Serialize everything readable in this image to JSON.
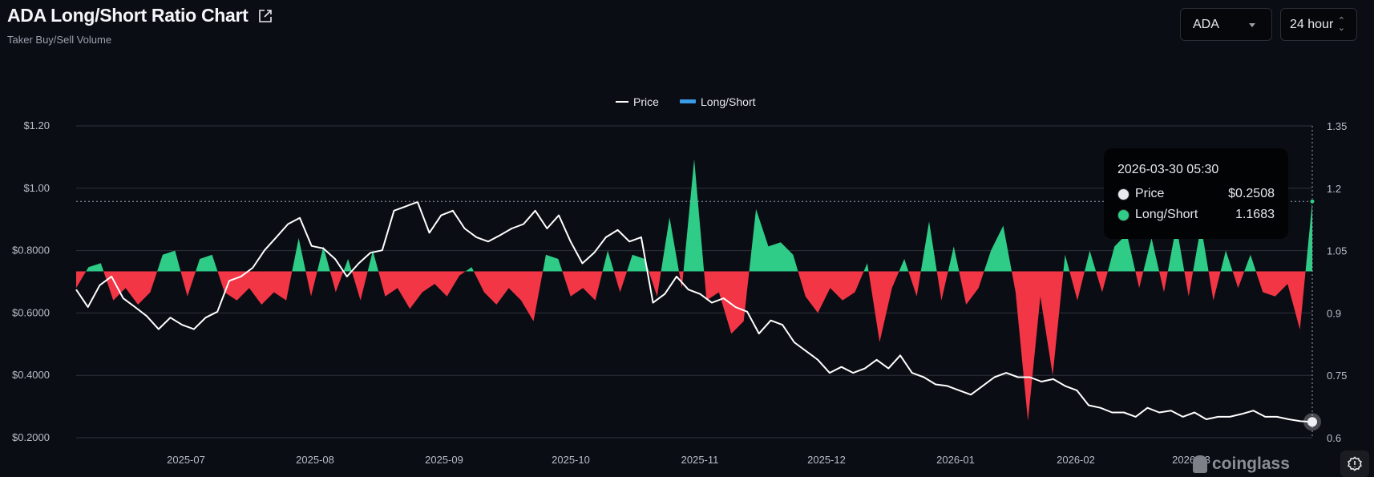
{
  "header": {
    "title": "ADA Long/Short Ratio Chart",
    "subtitle": "Taker Buy/Sell Volume",
    "coin_select": "ADA",
    "interval_select": "24 hour"
  },
  "tooltip": {
    "date": "2026-03-30 05:30",
    "price_label": "Price",
    "price_value": "$0.2508",
    "ls_label": "Long/Short",
    "ls_value": "1.1683"
  },
  "watermark": "coinglass",
  "colors": {
    "price": "#ffffff",
    "long": "#2ecc87",
    "short": "#f23645",
    "legend_ls": "#3a9be8",
    "bg": "#0b0d14"
  },
  "chart_data": {
    "type": "line+area",
    "title": "ADA Long/Short Ratio Chart",
    "legend": {
      "position": "top-center",
      "entries": [
        "Price",
        "Long/Short"
      ]
    },
    "x_ticks": [
      "2025-07",
      "2025-08",
      "2025-09",
      "2025-10",
      "2025-11",
      "2025-12",
      "2026-01",
      "2026-02",
      "2026-03"
    ],
    "x_range": [
      "2025-06-05",
      "2026-03-30"
    ],
    "y_left": {
      "ticks": [
        "$1.20",
        "$1.00",
        "$0.8000",
        "$0.6000",
        "$0.4000",
        "$0.2000"
      ],
      "range": [
        0.2,
        1.2
      ]
    },
    "y_right": {
      "ticks": [
        "1.35",
        "1.2",
        "1.05",
        "0.9",
        "0.75",
        "0.6"
      ],
      "range": [
        0.6,
        1.35
      ],
      "baseline": 1.0
    },
    "grid": true,
    "series": [
      {
        "name": "Price",
        "axis": "left",
        "values": [
          0.675,
          0.619,
          0.689,
          0.717,
          0.647,
          0.619,
          0.59,
          0.548,
          0.585,
          0.562,
          0.548,
          0.585,
          0.604,
          0.703,
          0.717,
          0.745,
          0.801,
          0.843,
          0.885,
          0.905,
          0.815,
          0.807,
          0.773,
          0.717,
          0.759,
          0.793,
          0.801,
          0.928,
          0.942,
          0.956,
          0.857,
          0.913,
          0.928,
          0.871,
          0.843,
          0.829,
          0.849,
          0.871,
          0.885,
          0.928,
          0.871,
          0.913,
          0.829,
          0.759,
          0.793,
          0.843,
          0.866,
          0.829,
          0.843,
          0.633,
          0.661,
          0.717,
          0.675,
          0.661,
          0.633,
          0.647,
          0.619,
          0.604,
          0.534,
          0.576,
          0.562,
          0.506,
          0.478,
          0.45,
          0.408,
          0.427,
          0.408,
          0.422,
          0.45,
          0.422,
          0.464,
          0.408,
          0.394,
          0.371,
          0.366,
          0.352,
          0.338,
          0.366,
          0.394,
          0.408,
          0.394,
          0.394,
          0.38,
          0.388,
          0.366,
          0.352,
          0.304,
          0.296,
          0.281,
          0.281,
          0.267,
          0.296,
          0.281,
          0.287,
          0.267,
          0.281,
          0.259,
          0.267,
          0.267,
          0.276,
          0.287,
          0.267,
          0.267,
          0.259,
          0.253,
          0.2508
        ]
      },
      {
        "name": "Long/Short",
        "axis": "right",
        "values": [
          0.96,
          1.01,
          1.02,
          0.93,
          0.96,
          0.92,
          0.95,
          1.04,
          1.05,
          0.94,
          1.03,
          1.04,
          0.95,
          0.93,
          0.96,
          0.92,
          0.95,
          0.93,
          1.08,
          0.94,
          1.06,
          0.95,
          1.03,
          0.93,
          1.05,
          0.94,
          0.96,
          0.91,
          0.95,
          0.97,
          0.94,
          0.99,
          1.01,
          0.95,
          0.92,
          0.96,
          0.93,
          0.88,
          1.04,
          1.03,
          0.94,
          0.96,
          0.93,
          1.05,
          0.95,
          1.04,
          1.03,
          0.94,
          1.13,
          0.96,
          1.27,
          0.93,
          0.95,
          0.85,
          0.88,
          1.15,
          1.06,
          1.07,
          1.04,
          0.94,
          0.9,
          0.96,
          0.93,
          0.95,
          1.02,
          0.83,
          0.96,
          1.03,
          0.94,
          1.12,
          0.93,
          1.06,
          0.92,
          0.96,
          1.05,
          1.11,
          0.95,
          0.64,
          0.94,
          0.75,
          1.04,
          0.93,
          1.05,
          0.95,
          1.06,
          1.09,
          0.96,
          1.08,
          0.95,
          1.11,
          0.94,
          1.11,
          0.93,
          1.05,
          0.96,
          1.04,
          0.95,
          0.94,
          0.97,
          0.86,
          1.1683
        ]
      }
    ]
  }
}
